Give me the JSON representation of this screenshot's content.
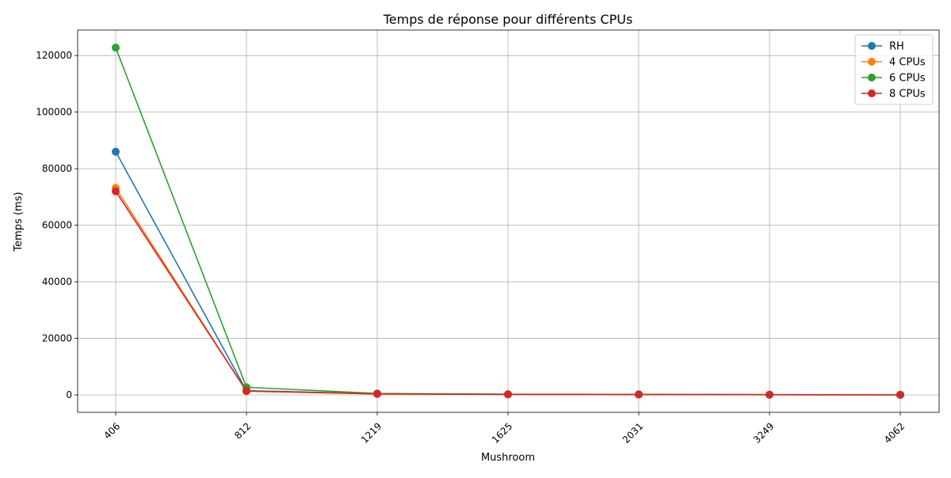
{
  "chart_data": {
    "type": "line",
    "title": "Temps de réponse pour différents CPUs",
    "xlabel": "Mushroom",
    "ylabel": "Temps (ms)",
    "categories": [
      "406",
      "812",
      "1219",
      "1625",
      "2031",
      "3249",
      "4062"
    ],
    "ylim": [
      -6150,
      129000
    ],
    "yticks": [
      0,
      20000,
      40000,
      60000,
      80000,
      100000,
      120000
    ],
    "grid": true,
    "legend_position": "top-right",
    "markers": "circle",
    "series": [
      {
        "name": "RH",
        "color": "#1f77b4",
        "values": [
          86000,
          1500,
          400,
          200,
          150,
          80,
          40
        ]
      },
      {
        "name": "4 CPUs",
        "color": "#ff7f0e",
        "values": [
          73200,
          1300,
          350,
          180,
          130,
          70,
          35
        ]
      },
      {
        "name": "6 CPUs",
        "color": "#2ca02c",
        "values": [
          122800,
          2700,
          500,
          250,
          200,
          100,
          50
        ]
      },
      {
        "name": "8 CPUs",
        "color": "#d62728",
        "values": [
          72000,
          1400,
          380,
          190,
          140,
          75,
          38
        ]
      }
    ]
  }
}
